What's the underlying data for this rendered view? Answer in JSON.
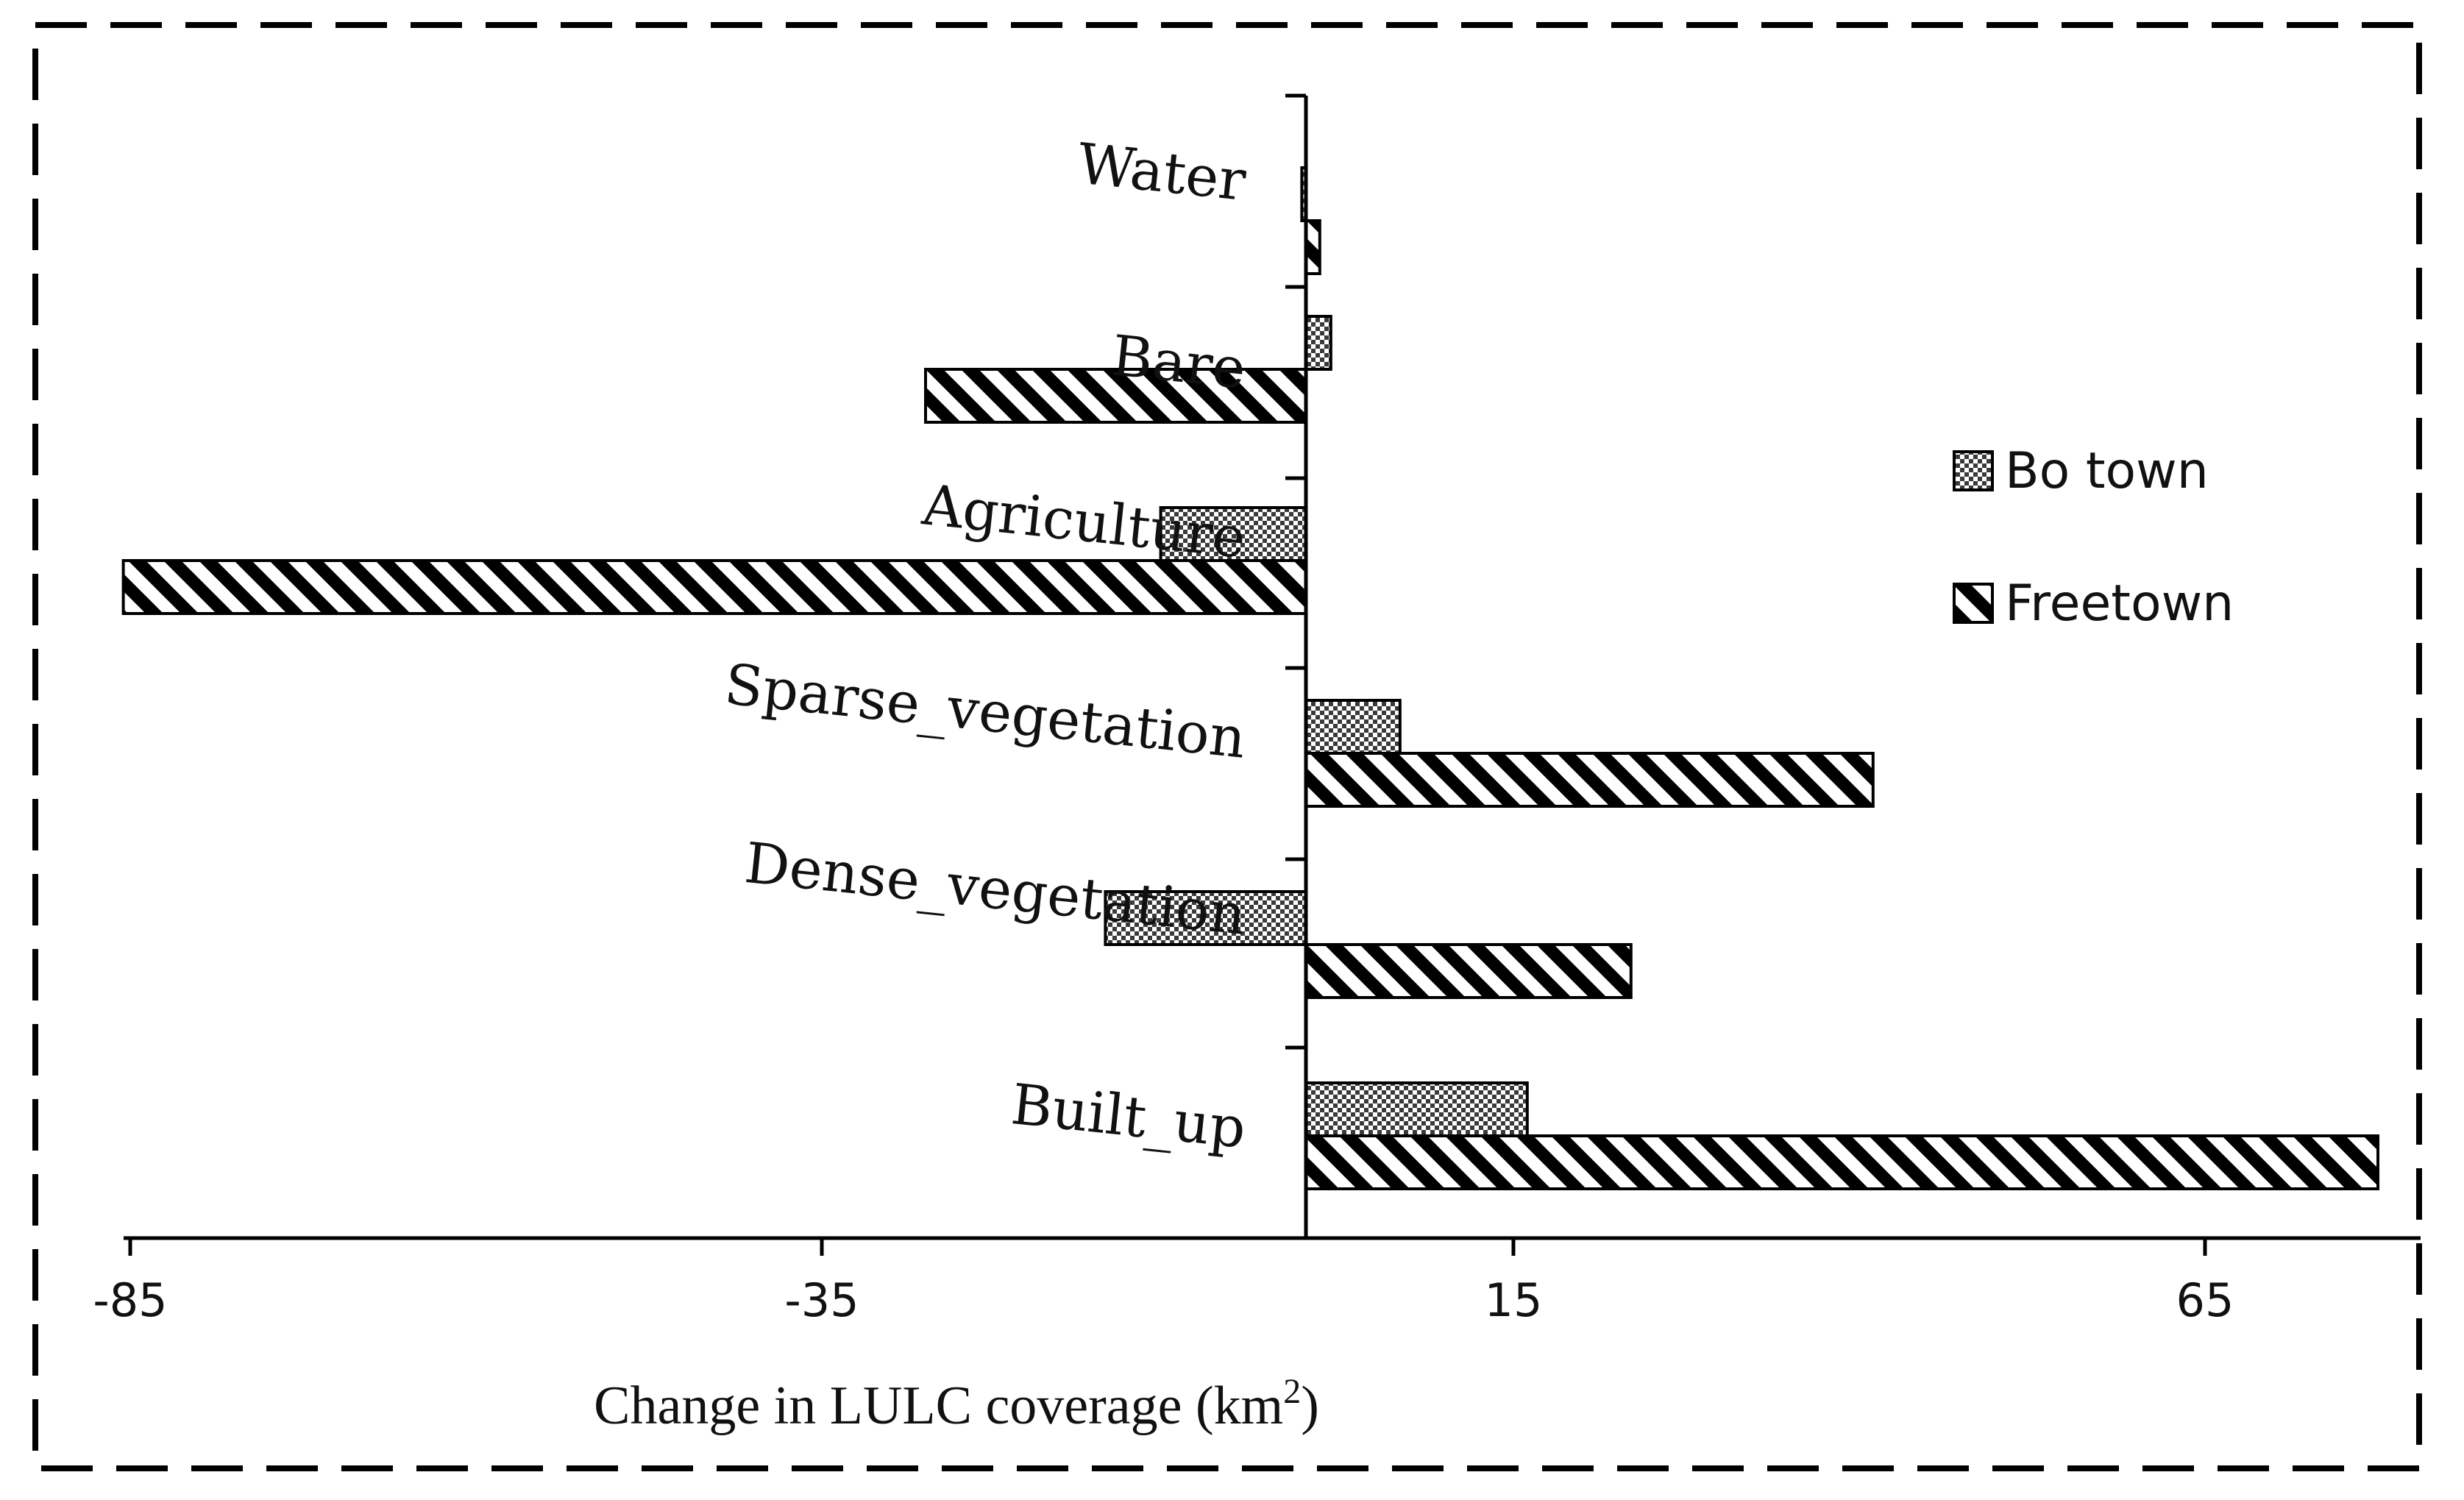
{
  "chart_data": {
    "type": "bar",
    "orientation": "horizontal",
    "categories": [
      "Water",
      "Bare",
      "Agriculture",
      "Sparse_vegetation",
      "Dense_vegetation",
      "Built_up"
    ],
    "series": [
      {
        "name": "Bo town",
        "values": [
          -0.3,
          1.8,
          -10.5,
          6.8,
          -14.5,
          16
        ],
        "pattern": "crosshatch"
      },
      {
        "name": "Freetown",
        "values": [
          1,
          -27.5,
          -85.5,
          41,
          23.5,
          77.5
        ],
        "pattern": "diagonal"
      }
    ],
    "xaxis": {
      "title": "Change in LULC  coverage (km",
      "title_sup": "2",
      "title_tail": ")",
      "ticks": [
        -85,
        -35,
        15,
        65
      ],
      "tick_labels": [
        "-85",
        "-35",
        "15",
        "65"
      ],
      "range": [
        -85,
        80
      ]
    },
    "legend": {
      "position": "right"
    },
    "grid": false,
    "frame": "dashed",
    "colors": {
      "stroke": "#000000",
      "fill": "#ffffff",
      "crosshatch": "#4a4a4a"
    }
  }
}
